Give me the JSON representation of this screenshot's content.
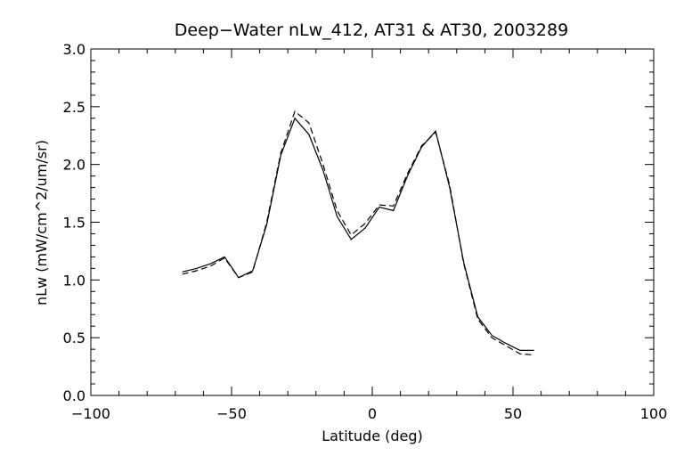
{
  "chart_data": {
    "type": "line",
    "title": "Deep−Water nLw_412, AT31 & AT30, 2003289",
    "xlabel": "Latitude (deg)",
    "ylabel": "nLw (mW/cm^2/um/sr)",
    "xlim": [
      -100,
      100
    ],
    "ylim": [
      0.0,
      3.0
    ],
    "xticks": [
      -100,
      -50,
      0,
      50,
      100
    ],
    "xtick_labels": [
      "−100",
      "−50",
      "0",
      "50",
      "100"
    ],
    "yticks": [
      0.0,
      0.5,
      1.0,
      1.5,
      2.0,
      2.5,
      3.0
    ],
    "ytick_labels": [
      "0.0",
      "0.5",
      "1.0",
      "1.5",
      "2.0",
      "2.5",
      "3.0"
    ],
    "grid": false,
    "series": [
      {
        "style": "solid",
        "x": [
          -67.5,
          -62.5,
          -57.5,
          -52.5,
          -47.5,
          -42.5,
          -37.5,
          -32.5,
          -27.5,
          -22.5,
          -17.5,
          -12.5,
          -7.5,
          -2.5,
          2.5,
          7.5,
          12.5,
          17.5,
          22.5,
          27.5,
          32.5,
          37.5,
          42.5,
          47.5,
          52.5,
          57.5
        ],
        "y": [
          1.07,
          1.1,
          1.14,
          1.2,
          1.02,
          1.08,
          1.48,
          2.08,
          2.4,
          2.26,
          1.95,
          1.55,
          1.35,
          1.45,
          1.63,
          1.6,
          1.9,
          2.15,
          2.29,
          1.8,
          1.15,
          0.68,
          0.52,
          0.45,
          0.39,
          0.39
        ]
      },
      {
        "style": "dashed",
        "x": [
          -67.5,
          -62.5,
          -57.5,
          -52.5,
          -47.5,
          -42.5,
          -37.5,
          -32.5,
          -27.5,
          -22.5,
          -17.5,
          -12.5,
          -7.5,
          -2.5,
          2.5,
          7.5,
          12.5,
          17.5,
          22.5,
          27.5,
          32.5,
          37.5,
          42.5,
          47.5,
          52.5,
          57.5
        ],
        "y": [
          1.05,
          1.08,
          1.12,
          1.19,
          1.02,
          1.07,
          1.5,
          2.1,
          2.46,
          2.36,
          2.0,
          1.6,
          1.39,
          1.49,
          1.65,
          1.64,
          1.92,
          2.16,
          2.28,
          1.82,
          1.14,
          0.66,
          0.5,
          0.43,
          0.36,
          0.35
        ]
      }
    ]
  }
}
